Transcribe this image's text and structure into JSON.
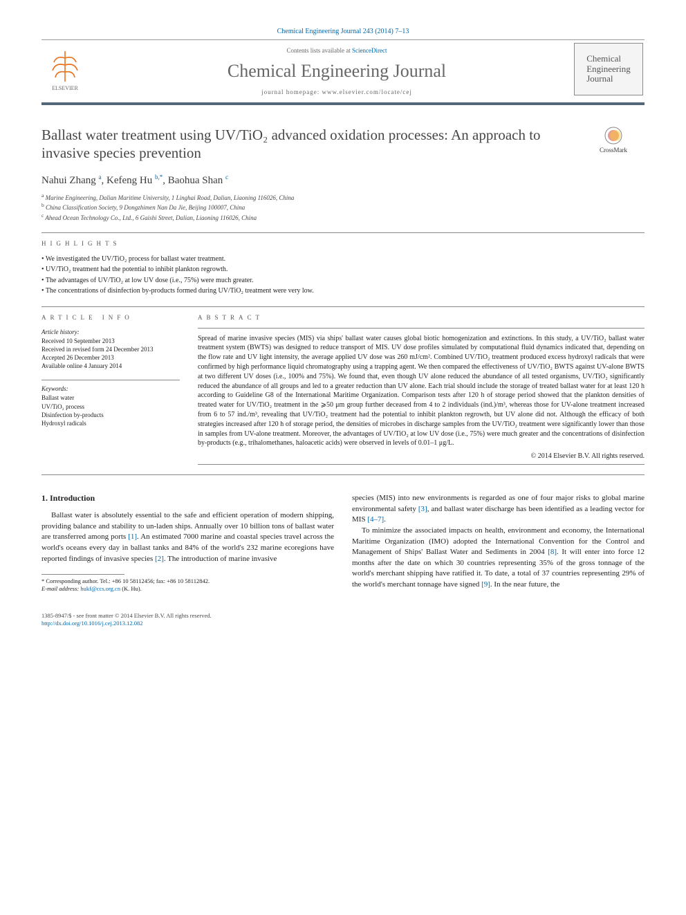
{
  "citation": "Chemical Engineering Journal 243 (2014) 7–13",
  "masthead": {
    "contents_line_pre": "Contents lists available at ",
    "contents_line_link": "ScienceDirect",
    "journal": "Chemical Engineering Journal",
    "homepage": "journal homepage: www.elsevier.com/locate/cej",
    "cover_text": "Chemical\nEngineering\nJournal"
  },
  "title": "Ballast water treatment using UV/TiO₂ advanced oxidation processes: An approach to invasive species prevention",
  "crossmark_label": "CrossMark",
  "authors_html": "Nahui Zhang <sup>a</sup>, Kefeng Hu <sup>b,*</sup>, Baohua Shan <sup>c</sup>",
  "affiliations": [
    "a Marine Engineering, Dalian Maritime University, 1 Linghai Road, Dalian, Liaoning 116026, China",
    "b China Classification Society, 9 Dongzhimen Nan Da Jie, Beijing 100007, China",
    "c Ahead Ocean Technology Co., Ltd., 6 Gaishi Street, Dalian, Liaoning 116026, China"
  ],
  "highlights_label": "highlights",
  "highlights": [
    "We investigated the UV/TiO₂ process for ballast water treatment.",
    "UV/TiO₂ treatment had the potential to inhibit plankton regrowth.",
    "The advantages of UV/TiO₂ at low UV dose (i.e., 75%) were much greater.",
    "The concentrations of disinfection by-products formed during UV/TiO₂ treatment were very low."
  ],
  "article_info_label": "article info",
  "abstract_label": "abstract",
  "history_head": "Article history:",
  "history": [
    "Received 10 September 2013",
    "Received in revised form 24 December 2013",
    "Accepted 26 December 2013",
    "Available online 4 January 2014"
  ],
  "keywords_head": "Keywords:",
  "keywords": [
    "Ballast water",
    "UV/TiO₂ process",
    "Disinfection by-products",
    "Hydroxyl radicals"
  ],
  "abstract": "Spread of marine invasive species (MIS) via ships' ballast water causes global biotic homogenization and extinctions. In this study, a UV/TiO₂ ballast water treatment system (BWTS) was designed to reduce transport of MIS. UV dose profiles simulated by computational fluid dynamics indicated that, depending on the flow rate and UV light intensity, the average applied UV dose was 260 mJ/cm². Combined UV/TiO₂ treatment produced excess hydroxyl radicals that were confirmed by high performance liquid chromatography using a trapping agent. We then compared the effectiveness of UV/TiO₂ BWTS against UV-alone BWTS at two different UV doses (i.e., 100% and 75%). We found that, even though UV alone reduced the abundance of all tested organisms, UV/TiO₂ significantly reduced the abundance of all groups and led to a greater reduction than UV alone. Each trial should include the storage of treated ballast water for at least 120 h according to Guideline G8 of the International Maritime Organization. Comparison tests after 120 h of storage period showed that the plankton densities of treated water for UV/TiO₂ treatment in the ⩾50 μm group further deceased from 4 to 2 individuals (ind.)/m³, whereas those for UV-alone treatment increased from 6 to 57 ind./m³, revealing that UV/TiO₂ treatment had the potential to inhibit plankton regrowth, but UV alone did not. Although the efficacy of both strategies increased after 120 h of storage period, the densities of microbes in discharge samples from the UV/TiO₂ treatment were significantly lower than those in samples from UV-alone treatment. Moreover, the advantages of UV/TiO₂ at low UV dose (i.e., 75%) were much greater and the concentrations of disinfection by-products (e.g., trihalomethanes, haloacetic acids) were observed in levels of 0.01–1 μg/L.",
  "copyright": "© 2014 Elsevier B.V. All rights reserved.",
  "intro_heading": "1. Introduction",
  "intro_p1_pre": "Ballast water is absolutely essential to the safe and efficient operation of modern shipping, providing balance and stability to un-laden ships. Annually over 10 billion tons of ballast water are transferred among ports ",
  "intro_p1_c1": "[1]",
  "intro_p1_mid": ". An estimated 7000 marine and coastal species travel across the world's oceans every day in ballast tanks and 84% of the world's 232 marine ecoregions have reported findings of invasive species ",
  "intro_p1_c2": "[2]",
  "intro_p1_post": ". The introduction of marine invasive",
  "intro_p2_pre": "species (MIS) into new environments is regarded as one of four major risks to global marine environmental safety ",
  "intro_p2_c1": "[3]",
  "intro_p2_mid": ", and ballast water discharge has been identified as a leading vector for MIS ",
  "intro_p2_c2": "[4–7]",
  "intro_p2_post": ".",
  "intro_p3_pre": "To minimize the associated impacts on health, environment and economy, the International Maritime Organization (IMO) adopted the International Convention for the Control and Management of Ships' Ballast Water and Sediments in 2004 ",
  "intro_p3_c1": "[8]",
  "intro_p3_mid": ". It will enter into force 12 months after the date on which 30 countries representing 35% of the gross tonnage of the world's merchant shipping have ratified it. To date, a total of 37 countries representing 29% of the world's merchant tonnage have signed ",
  "intro_p3_c2": "[9]",
  "intro_p3_post": ". In the near future, the",
  "corr_note": "* Corresponding author. Tel.: +86 10 58112456; fax: +86 10 58112842.",
  "corr_email_label": "E-mail address:",
  "corr_email": "hukf@ccs.org.cn",
  "corr_email_tail": " (K. Hu).",
  "footer_line1": "1385-8947/$ - see front matter © 2014 Elsevier B.V. All rights reserved.",
  "footer_doi": "http://dx.doi.org/10.1016/j.cej.2013.12.082",
  "colors": {
    "link": "#0066aa",
    "rule": "#556677",
    "gray_text": "#666666",
    "body": "#222222"
  }
}
